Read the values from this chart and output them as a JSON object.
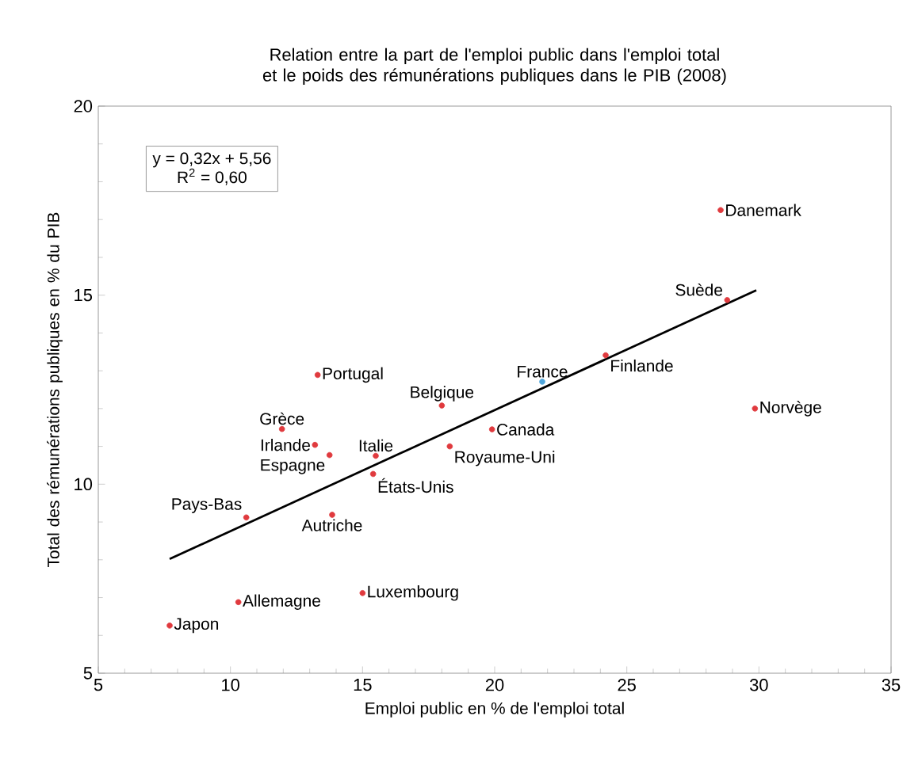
{
  "chart_data": {
    "type": "scatter",
    "title": "Relation entre la part de l'emploi public dans l'emploi total et le poids des rémunérations publiques dans le PIB (2008)",
    "xlabel": "Emploi public en % de l'emploi total",
    "ylabel": "Total des rémunérations publiques en % du PIB",
    "xlim": [
      5,
      35
    ],
    "ylim": [
      5,
      20
    ],
    "xticks": [
      5,
      10,
      15,
      20,
      25,
      30,
      35
    ],
    "yticks": [
      5,
      10,
      15,
      20
    ],
    "grid": false,
    "marker": "circle",
    "series": [
      {
        "x": [
          7.7,
          10.3,
          15.0,
          10.6,
          13.85,
          15.4,
          15.5,
          13.75,
          13.2,
          11.95,
          13.3,
          18.0,
          18.3,
          19.9,
          21.8,
          24.2,
          28.8,
          28.55,
          29.85
        ],
        "values": [
          6.26,
          6.88,
          7.12,
          9.12,
          9.19,
          10.27,
          10.75,
          10.77,
          11.04,
          11.46,
          12.89,
          12.08,
          11.0,
          11.45,
          12.71,
          13.41,
          14.87,
          17.25,
          12.0
        ],
        "colors": [
          "#e03a3e",
          "#e03a3e",
          "#e03a3e",
          "#e03a3e",
          "#e03a3e",
          "#e03a3e",
          "#e03a3e",
          "#e03a3e",
          "#e03a3e",
          "#e03a3e",
          "#e03a3e",
          "#e03a3e",
          "#e03a3e",
          "#e03a3e",
          "#4fa6dc",
          "#e03a3e",
          "#e03a3e",
          "#e03a3e",
          "#e03a3e"
        ]
      },
      {
        "type": "line",
        "x": [
          7.7,
          29.9
        ],
        "values": [
          8.02,
          15.13
        ],
        "color": "#000000",
        "marker": "none",
        "line_style": "solid"
      }
    ],
    "annotations": [
      "y = 0,32x + 5,56",
      "R$^{2}$ = 0,60",
      {
        "text": "Japon",
        "x": 7.7,
        "y": 6.26
      },
      {
        "text": "Allemagne",
        "x": 10.3,
        "y": 6.88
      },
      {
        "text": "Luxembourg",
        "x": 15.0,
        "y": 7.12
      },
      {
        "text": "Pays-Bas",
        "x": 10.6,
        "y": 9.12
      },
      {
        "text": "Autriche",
        "x": 13.85,
        "y": 9.19
      },
      {
        "text": "États-Unis",
        "x": 15.4,
        "y": 10.27
      },
      {
        "text": "Italie",
        "x": 15.5,
        "y": 10.75
      },
      {
        "text": "Espagne",
        "x": 13.75,
        "y": 10.77
      },
      {
        "text": "Irlande",
        "x": 13.2,
        "y": 11.04
      },
      {
        "text": "Grèce",
        "x": 11.95,
        "y": 11.46
      },
      {
        "text": "Portugal",
        "x": 13.3,
        "y": 12.89
      },
      {
        "text": "Belgique",
        "x": 18.0,
        "y": 12.08
      },
      {
        "text": "Royaume-Uni",
        "x": 18.3,
        "y": 11.0
      },
      {
        "text": "Canada",
        "x": 19.9,
        "y": 11.45
      },
      {
        "text": "France",
        "x": 21.8,
        "y": 12.71
      },
      {
        "text": "Finlande",
        "x": 24.2,
        "y": 13.41
      },
      {
        "text": "Suède",
        "x": 28.8,
        "y": 14.87
      },
      {
        "text": "Danemark",
        "x": 28.55,
        "y": 17.25
      },
      {
        "text": "Norvège",
        "x": 29.85,
        "y": 12.0
      }
    ]
  }
}
